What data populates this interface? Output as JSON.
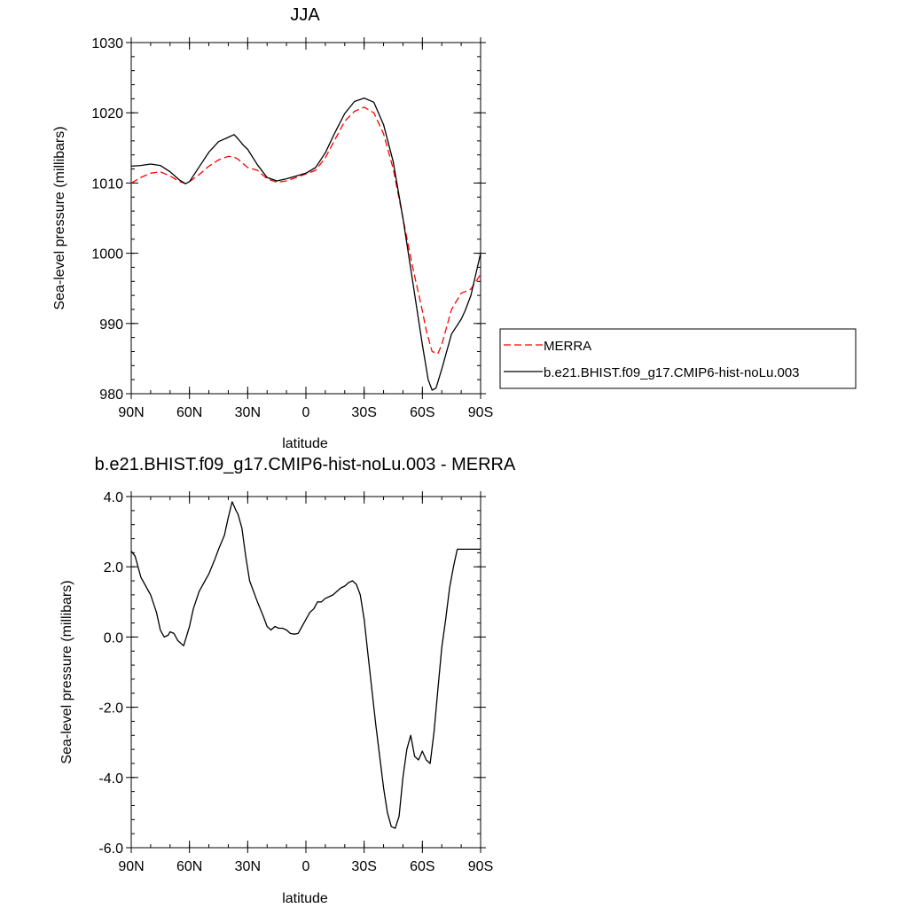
{
  "chart_data": [
    {
      "type": "line",
      "title": "JJA",
      "xlabel": "latitude",
      "ylabel": "Sea-level pressure (millibars)",
      "xlim": [
        -90,
        90
      ],
      "ylim": [
        980,
        1030
      ],
      "x_ticks": [
        -90,
        -60,
        -30,
        0,
        30,
        60,
        90
      ],
      "x_tick_labels": [
        "90N",
        "60N",
        "30N",
        "0",
        "30S",
        "60S",
        "90S"
      ],
      "y_ticks": [
        980,
        990,
        1000,
        1010,
        1020,
        1030
      ],
      "y_tick_labels": [
        "980",
        "990",
        "1000",
        "1010",
        "1020",
        "1030"
      ],
      "legend_position": "right",
      "series": [
        {
          "name": "MERRA",
          "color": "#ff0000",
          "dash": "dashed",
          "x": [
            -90,
            -85,
            -80,
            -75,
            -70,
            -65,
            -62,
            -60,
            -55,
            -50,
            -45,
            -40,
            -37,
            -35,
            -30,
            -25,
            -20,
            -15,
            -10,
            -5,
            0,
            5,
            10,
            15,
            20,
            25,
            30,
            35,
            40,
            45,
            50,
            55,
            60,
            62,
            65,
            68,
            70,
            75,
            80,
            85,
            90
          ],
          "y": [
            1010.0,
            1010.8,
            1011.4,
            1011.6,
            1011.0,
            1010.2,
            1009.9,
            1010.2,
            1011.2,
            1012.4,
            1013.3,
            1013.8,
            1013.7,
            1013.4,
            1012.2,
            1011.8,
            1010.6,
            1010.1,
            1010.3,
            1010.8,
            1011.3,
            1011.8,
            1013.6,
            1016.2,
            1018.8,
            1020.2,
            1020.8,
            1020.0,
            1017.0,
            1012.0,
            1005.0,
            998.0,
            991.8,
            989.0,
            986.0,
            985.7,
            987.0,
            992.0,
            994.3,
            994.9,
            997.0
          ]
        },
        {
          "name": "b.e21.BHIST.f09_g17.CMIP6-hist-noLu.003",
          "color": "#000000",
          "dash": "solid",
          "x": [
            -90,
            -85,
            -80,
            -75,
            -70,
            -65,
            -62,
            -60,
            -55,
            -50,
            -45,
            -40,
            -37,
            -35,
            -32,
            -30,
            -25,
            -20,
            -15,
            -10,
            -5,
            0,
            5,
            10,
            15,
            20,
            25,
            30,
            35,
            40,
            45,
            50,
            55,
            60,
            63,
            65,
            67,
            70,
            75,
            80,
            82,
            85,
            90
          ],
          "y": [
            1012.4,
            1012.5,
            1012.7,
            1012.5,
            1011.6,
            1010.4,
            1009.9,
            1010.2,
            1012.3,
            1014.4,
            1015.9,
            1016.5,
            1016.9,
            1016.3,
            1015.3,
            1014.8,
            1012.6,
            1010.8,
            1010.3,
            1010.6,
            1011.0,
            1011.4,
            1012.2,
            1014.3,
            1017.2,
            1019.9,
            1021.6,
            1022.1,
            1021.5,
            1018.3,
            1013.0,
            1005.0,
            996.0,
            987.0,
            982.0,
            980.5,
            980.8,
            983.5,
            988.5,
            990.6,
            991.8,
            994.0,
            1000.0
          ]
        }
      ]
    },
    {
      "type": "line",
      "title": "b.e21.BHIST.f09_g17.CMIP6-hist-noLu.003 - MERRA",
      "xlabel": "latitude",
      "ylabel": "Sea-level pressure (millibars)",
      "xlim": [
        -90,
        90
      ],
      "ylim": [
        -6,
        4
      ],
      "x_ticks": [
        -90,
        -60,
        -30,
        0,
        30,
        60,
        90
      ],
      "x_tick_labels": [
        "90N",
        "60N",
        "30N",
        "0",
        "30S",
        "60S",
        "90S"
      ],
      "y_ticks": [
        -6,
        -4,
        -2,
        0,
        2,
        4
      ],
      "y_tick_labels": [
        "-6.0",
        "-4.0",
        "-2.0",
        "0.0",
        "2.0",
        "4.0"
      ],
      "series": [
        {
          "color": "#000000",
          "dash": "solid",
          "x": [
            -90,
            -88,
            -85,
            -82,
            -80,
            -77,
            -75,
            -73,
            -71,
            -70,
            -68,
            -66,
            -63,
            -60,
            -58,
            -55,
            -52,
            -50,
            -47,
            -45,
            -42,
            -40,
            -38,
            -36,
            -35,
            -33,
            -31,
            -29,
            -27,
            -25,
            -22,
            -20,
            -18,
            -16,
            -14,
            -12,
            -10,
            -8,
            -6,
            -4,
            -2,
            0,
            2,
            4,
            6,
            8,
            10,
            12,
            14,
            16,
            18,
            20,
            22,
            24,
            26,
            28,
            30,
            32,
            34,
            36,
            38,
            40,
            42,
            44,
            46,
            48,
            50,
            52,
            54,
            56,
            58,
            60,
            62,
            64,
            66,
            68,
            70,
            72,
            74,
            76,
            78,
            80,
            82,
            84,
            86,
            88,
            90
          ],
          "y": [
            2.45,
            2.3,
            1.7,
            1.4,
            1.2,
            0.7,
            0.2,
            0.0,
            0.05,
            0.15,
            0.1,
            -0.1,
            -0.25,
            0.3,
            0.8,
            1.3,
            1.6,
            1.8,
            2.2,
            2.5,
            2.9,
            3.4,
            3.85,
            3.6,
            3.5,
            3.1,
            2.3,
            1.6,
            1.3,
            1.0,
            0.6,
            0.3,
            0.2,
            0.3,
            0.25,
            0.25,
            0.2,
            0.1,
            0.08,
            0.1,
            0.3,
            0.5,
            0.7,
            0.8,
            1.0,
            1.0,
            1.1,
            1.15,
            1.2,
            1.3,
            1.4,
            1.45,
            1.55,
            1.6,
            1.5,
            1.2,
            0.5,
            -0.5,
            -1.5,
            -2.5,
            -3.4,
            -4.3,
            -5.0,
            -5.4,
            -5.45,
            -5.1,
            -4.0,
            -3.2,
            -2.8,
            -3.4,
            -3.5,
            -3.25,
            -3.5,
            -3.6,
            -2.7,
            -1.5,
            -0.3,
            0.5,
            1.4,
            2.0,
            2.5,
            2.5,
            2.5,
            2.5,
            2.5,
            2.5,
            2.5
          ]
        }
      ]
    }
  ]
}
